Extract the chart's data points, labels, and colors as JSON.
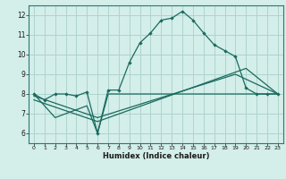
{
  "xlabel": "Humidex (Indice chaleur)",
  "xlim": [
    -0.5,
    23.5
  ],
  "ylim": [
    5.5,
    12.5
  ],
  "xticks": [
    0,
    1,
    2,
    3,
    4,
    5,
    6,
    7,
    8,
    9,
    10,
    11,
    12,
    13,
    14,
    15,
    16,
    17,
    18,
    19,
    20,
    21,
    22,
    23
  ],
  "yticks": [
    6,
    7,
    8,
    9,
    10,
    11,
    12
  ],
  "bg_color": "#d4eeea",
  "grid_color": "#aed4ce",
  "line_color": "#1a6b5e",
  "curve1_x": [
    0,
    1,
    2,
    3,
    4,
    5,
    6,
    7,
    8,
    9,
    10,
    11,
    12,
    13,
    14,
    15,
    16,
    17,
    18,
    19,
    20,
    21,
    22,
    23
  ],
  "curve1_y": [
    8.0,
    7.7,
    8.0,
    8.0,
    7.9,
    8.1,
    6.0,
    8.2,
    8.2,
    9.6,
    10.6,
    11.1,
    11.75,
    11.85,
    12.2,
    11.75,
    11.1,
    10.5,
    10.2,
    9.9,
    8.3,
    8.0,
    8.0,
    8.0
  ],
  "curve2_x": [
    0,
    2,
    5,
    6,
    7,
    20,
    22,
    23
  ],
  "curve2_y": [
    8.0,
    6.8,
    7.4,
    6.0,
    8.0,
    8.0,
    8.0,
    8.0
  ],
  "curve3_x": [
    0,
    6,
    19,
    23
  ],
  "curve3_y": [
    7.9,
    6.8,
    9.0,
    8.0
  ],
  "curve4_x": [
    0,
    6,
    20,
    23
  ],
  "curve4_y": [
    7.7,
    6.6,
    9.3,
    8.0
  ]
}
